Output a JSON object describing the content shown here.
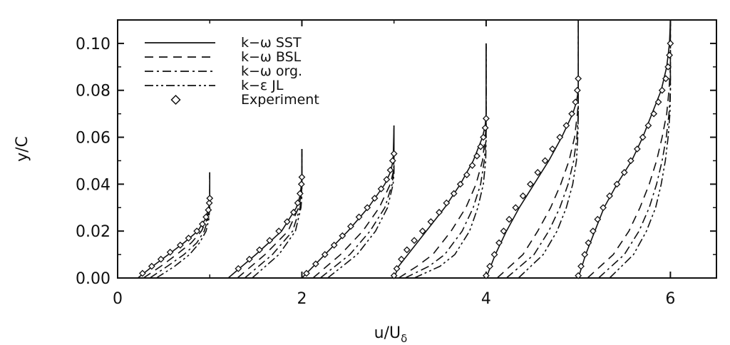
{
  "chart_data": {
    "type": "line",
    "xlabel": "u/U",
    "xlabel_subscript": "δ",
    "ylabel": "y/C",
    "xlim": [
      0,
      6.5
    ],
    "ylim": [
      0,
      0.11
    ],
    "x_ticks": [
      0,
      2,
      4,
      6
    ],
    "x_tick_labels": [
      "0",
      "2",
      "4",
      "6"
    ],
    "y_ticks": [
      0.0,
      0.02,
      0.04,
      0.06,
      0.08,
      0.1
    ],
    "y_tick_labels": [
      "0.00",
      "0.02",
      "0.04",
      "0.06",
      "0.08",
      "0.10"
    ],
    "grid": false,
    "legend_position": "top-left",
    "legend": [
      {
        "label": "k−ω SST",
        "style": "solid"
      },
      {
        "label": "k−ω BSL",
        "style": "dashed"
      },
      {
        "label": "k−ω org.",
        "style": "dashdot"
      },
      {
        "label": "k−ε JL",
        "style": "dashdotdot"
      },
      {
        "label": "Experiment",
        "style": "diamond"
      }
    ],
    "profile_offsets": [
      0,
      1,
      2,
      3,
      4,
      5
    ],
    "stations": [
      {
        "offset": 0,
        "y": [
          0,
          0.005,
          0.01,
          0.015,
          0.02,
          0.025,
          0.03,
          0.035,
          0.045
        ],
        "sst": [
          0.22,
          0.38,
          0.55,
          0.72,
          0.87,
          0.95,
          0.99,
          1.0,
          1.0
        ],
        "bsl": [
          0.28,
          0.47,
          0.64,
          0.8,
          0.91,
          0.97,
          0.995,
          1.0,
          1.0
        ],
        "org": [
          0.35,
          0.54,
          0.72,
          0.86,
          0.94,
          0.98,
          0.998,
          1.0,
          1.0
        ],
        "jl": [
          0.42,
          0.62,
          0.78,
          0.89,
          0.96,
          0.99,
          1.0,
          1.0,
          1.0
        ],
        "exp_y": [
          0.002,
          0.005,
          0.008,
          0.011,
          0.014,
          0.017,
          0.02,
          0.023,
          0.026,
          0.029,
          0.032,
          0.034
        ],
        "exp_u": [
          0.27,
          0.37,
          0.47,
          0.57,
          0.68,
          0.77,
          0.86,
          0.92,
          0.96,
          0.985,
          0.995,
          1.0
        ]
      },
      {
        "offset": 1,
        "y": [
          0,
          0.01,
          0.02,
          0.03,
          0.035,
          0.04,
          0.045,
          0.055
        ],
        "sst": [
          0.2,
          0.5,
          0.78,
          0.94,
          0.98,
          0.995,
          1.0,
          1.0
        ],
        "bsl": [
          0.3,
          0.6,
          0.85,
          0.965,
          0.99,
          1.0,
          1.0,
          1.0
        ],
        "org": [
          0.38,
          0.68,
          0.9,
          0.98,
          0.995,
          1.0,
          1.0,
          1.0
        ],
        "jl": [
          0.46,
          0.75,
          0.93,
          0.99,
          1.0,
          1.0,
          1.0,
          1.0
        ],
        "exp_y": [
          0.004,
          0.008,
          0.012,
          0.016,
          0.02,
          0.024,
          0.028,
          0.032,
          0.036,
          0.04,
          0.043
        ],
        "exp_u": [
          0.31,
          0.43,
          0.54,
          0.65,
          0.75,
          0.84,
          0.91,
          0.955,
          0.98,
          0.995,
          1.0
        ]
      },
      {
        "offset": 2,
        "y": [
          0,
          0.01,
          0.02,
          0.03,
          0.04,
          0.045,
          0.05,
          0.065
        ],
        "sst": [
          0.0,
          0.25,
          0.5,
          0.72,
          0.9,
          0.96,
          0.99,
          1.0
        ],
        "bsl": [
          0.12,
          0.42,
          0.66,
          0.84,
          0.96,
          0.99,
          1.0,
          1.0
        ],
        "org": [
          0.2,
          0.52,
          0.74,
          0.9,
          0.98,
          0.995,
          1.0,
          1.0
        ],
        "jl": [
          0.28,
          0.6,
          0.8,
          0.93,
          0.99,
          1.0,
          1.0,
          1.0
        ],
        "exp_y": [
          0.002,
          0.006,
          0.01,
          0.014,
          0.018,
          0.022,
          0.026,
          0.03,
          0.034,
          0.038,
          0.042,
          0.046,
          0.05,
          0.053
        ],
        "exp_u": [
          0.05,
          0.15,
          0.25,
          0.35,
          0.44,
          0.53,
          0.62,
          0.71,
          0.79,
          0.86,
          0.92,
          0.96,
          0.985,
          1.0
        ]
      },
      {
        "offset": 3,
        "y": [
          0,
          0.005,
          0.01,
          0.02,
          0.03,
          0.04,
          0.05,
          0.06,
          0.065,
          0.07,
          0.1
        ],
        "sst": [
          0.0,
          0.05,
          0.15,
          0.35,
          0.55,
          0.72,
          0.86,
          0.96,
          0.99,
          1.0,
          1.0
        ],
        "bsl": [
          0.05,
          0.25,
          0.42,
          0.62,
          0.78,
          0.89,
          0.96,
          0.99,
          1.0,
          1.0,
          1.0
        ],
        "org": [
          0.12,
          0.38,
          0.55,
          0.74,
          0.86,
          0.94,
          0.98,
          1.0,
          1.0,
          1.0,
          1.0
        ],
        "jl": [
          0.22,
          0.5,
          0.66,
          0.82,
          0.91,
          0.97,
          0.995,
          1.0,
          1.0,
          1.0,
          1.0
        ],
        "exp_y": [
          0.001,
          0.004,
          0.008,
          0.012,
          0.016,
          0.02,
          0.024,
          0.028,
          0.032,
          0.036,
          0.04,
          0.044,
          0.048,
          0.052,
          0.056,
          0.06,
          0.064,
          0.068
        ],
        "exp_u": [
          0.0,
          0.03,
          0.08,
          0.14,
          0.22,
          0.31,
          0.4,
          0.49,
          0.57,
          0.65,
          0.72,
          0.79,
          0.85,
          0.9,
          0.94,
          0.97,
          0.99,
          1.0
        ]
      },
      {
        "offset": 4,
        "y": [
          0,
          0.01,
          0.02,
          0.03,
          0.04,
          0.05,
          0.06,
          0.07,
          0.075,
          0.08,
          0.11
        ],
        "sst": [
          0.0,
          0.1,
          0.22,
          0.36,
          0.52,
          0.68,
          0.82,
          0.94,
          0.98,
          1.0,
          1.0
        ],
        "bsl": [
          0.12,
          0.4,
          0.56,
          0.7,
          0.81,
          0.9,
          0.96,
          0.99,
          1.0,
          1.0,
          1.0
        ],
        "org": [
          0.22,
          0.52,
          0.68,
          0.8,
          0.89,
          0.95,
          0.985,
          1.0,
          1.0,
          1.0,
          1.0
        ],
        "jl": [
          0.35,
          0.62,
          0.77,
          0.87,
          0.94,
          0.98,
          0.995,
          1.0,
          1.0,
          1.0,
          1.0
        ],
        "exp_y": [
          0.001,
          0.005,
          0.01,
          0.015,
          0.02,
          0.025,
          0.03,
          0.035,
          0.04,
          0.045,
          0.05,
          0.055,
          0.06,
          0.065,
          0.07,
          0.075,
          0.08,
          0.085
        ],
        "exp_u": [
          0.0,
          0.04,
          0.09,
          0.14,
          0.19,
          0.25,
          0.32,
          0.4,
          0.48,
          0.56,
          0.64,
          0.72,
          0.8,
          0.87,
          0.93,
          0.97,
          0.99,
          1.0
        ]
      },
      {
        "offset": 5,
        "y": [
          0,
          0.01,
          0.02,
          0.03,
          0.04,
          0.05,
          0.06,
          0.07,
          0.08,
          0.09,
          0.1,
          0.11
        ],
        "sst": [
          0.0,
          0.08,
          0.18,
          0.28,
          0.42,
          0.58,
          0.7,
          0.8,
          0.9,
          0.96,
          0.99,
          1.0
        ],
        "bsl": [
          0.1,
          0.38,
          0.55,
          0.67,
          0.77,
          0.85,
          0.91,
          0.96,
          0.985,
          1.0,
          1.0,
          1.0
        ],
        "org": [
          0.22,
          0.5,
          0.66,
          0.77,
          0.85,
          0.91,
          0.955,
          0.985,
          1.0,
          1.0,
          1.0,
          1.0
        ],
        "jl": [
          0.34,
          0.6,
          0.74,
          0.84,
          0.9,
          0.945,
          0.975,
          0.995,
          1.0,
          1.0,
          1.0,
          1.0
        ],
        "exp_y": [
          0.001,
          0.005,
          0.01,
          0.015,
          0.02,
          0.025,
          0.03,
          0.035,
          0.04,
          0.045,
          0.05,
          0.055,
          0.06,
          0.065,
          0.07,
          0.075,
          0.08,
          0.085,
          0.09,
          0.095,
          0.1
        ],
        "exp_u": [
          0.0,
          0.03,
          0.07,
          0.11,
          0.16,
          0.21,
          0.27,
          0.34,
          0.42,
          0.5,
          0.57,
          0.64,
          0.7,
          0.76,
          0.82,
          0.87,
          0.91,
          0.95,
          0.975,
          0.99,
          1.0
        ]
      }
    ]
  }
}
